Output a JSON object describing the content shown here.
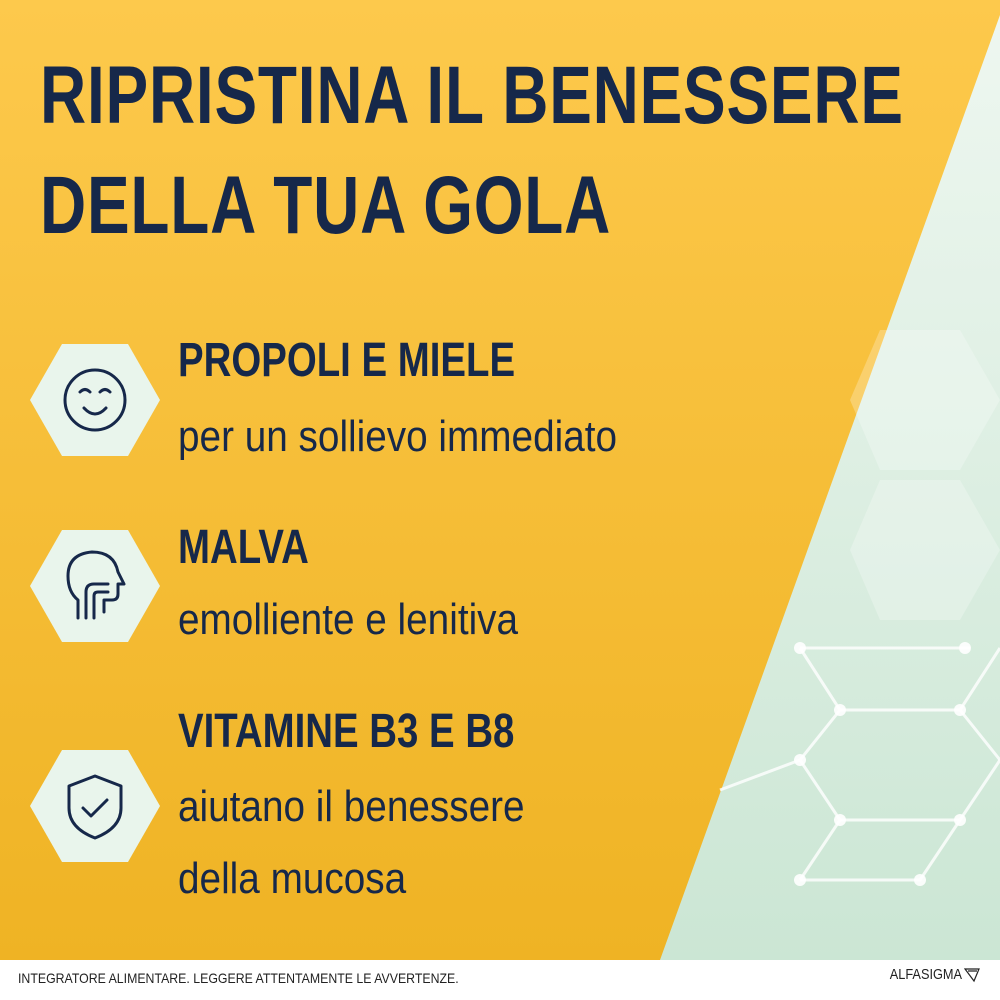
{
  "headline": {
    "line1": "RIPRISTINA IL BENESSERE",
    "line2": "DELLA TUA GOLA"
  },
  "benefits": [
    {
      "icon": "smile-icon",
      "title": "PROPOLI E MIELE",
      "lines": [
        "per un sollievo immediato"
      ]
    },
    {
      "icon": "throat-profile-icon",
      "title": "MALVA",
      "lines": [
        "emolliente e lenitiva"
      ]
    },
    {
      "icon": "shield-check-icon",
      "title": "VITAMINE B3 E B8",
      "lines": [
        "aiutano il benessere",
        "della mucosa"
      ]
    }
  ],
  "footer": {
    "disclaimer": "INTEGRATORE ALIMENTARE. LEGGERE ATTENTAMENTE LE AVVERTENZE.",
    "brand": "ALFASIGMA"
  },
  "colors": {
    "yellow": "#f7bd35",
    "navy": "#16284a",
    "mint": "#d6ecdf",
    "hex_fill": "#e9f5ec"
  }
}
